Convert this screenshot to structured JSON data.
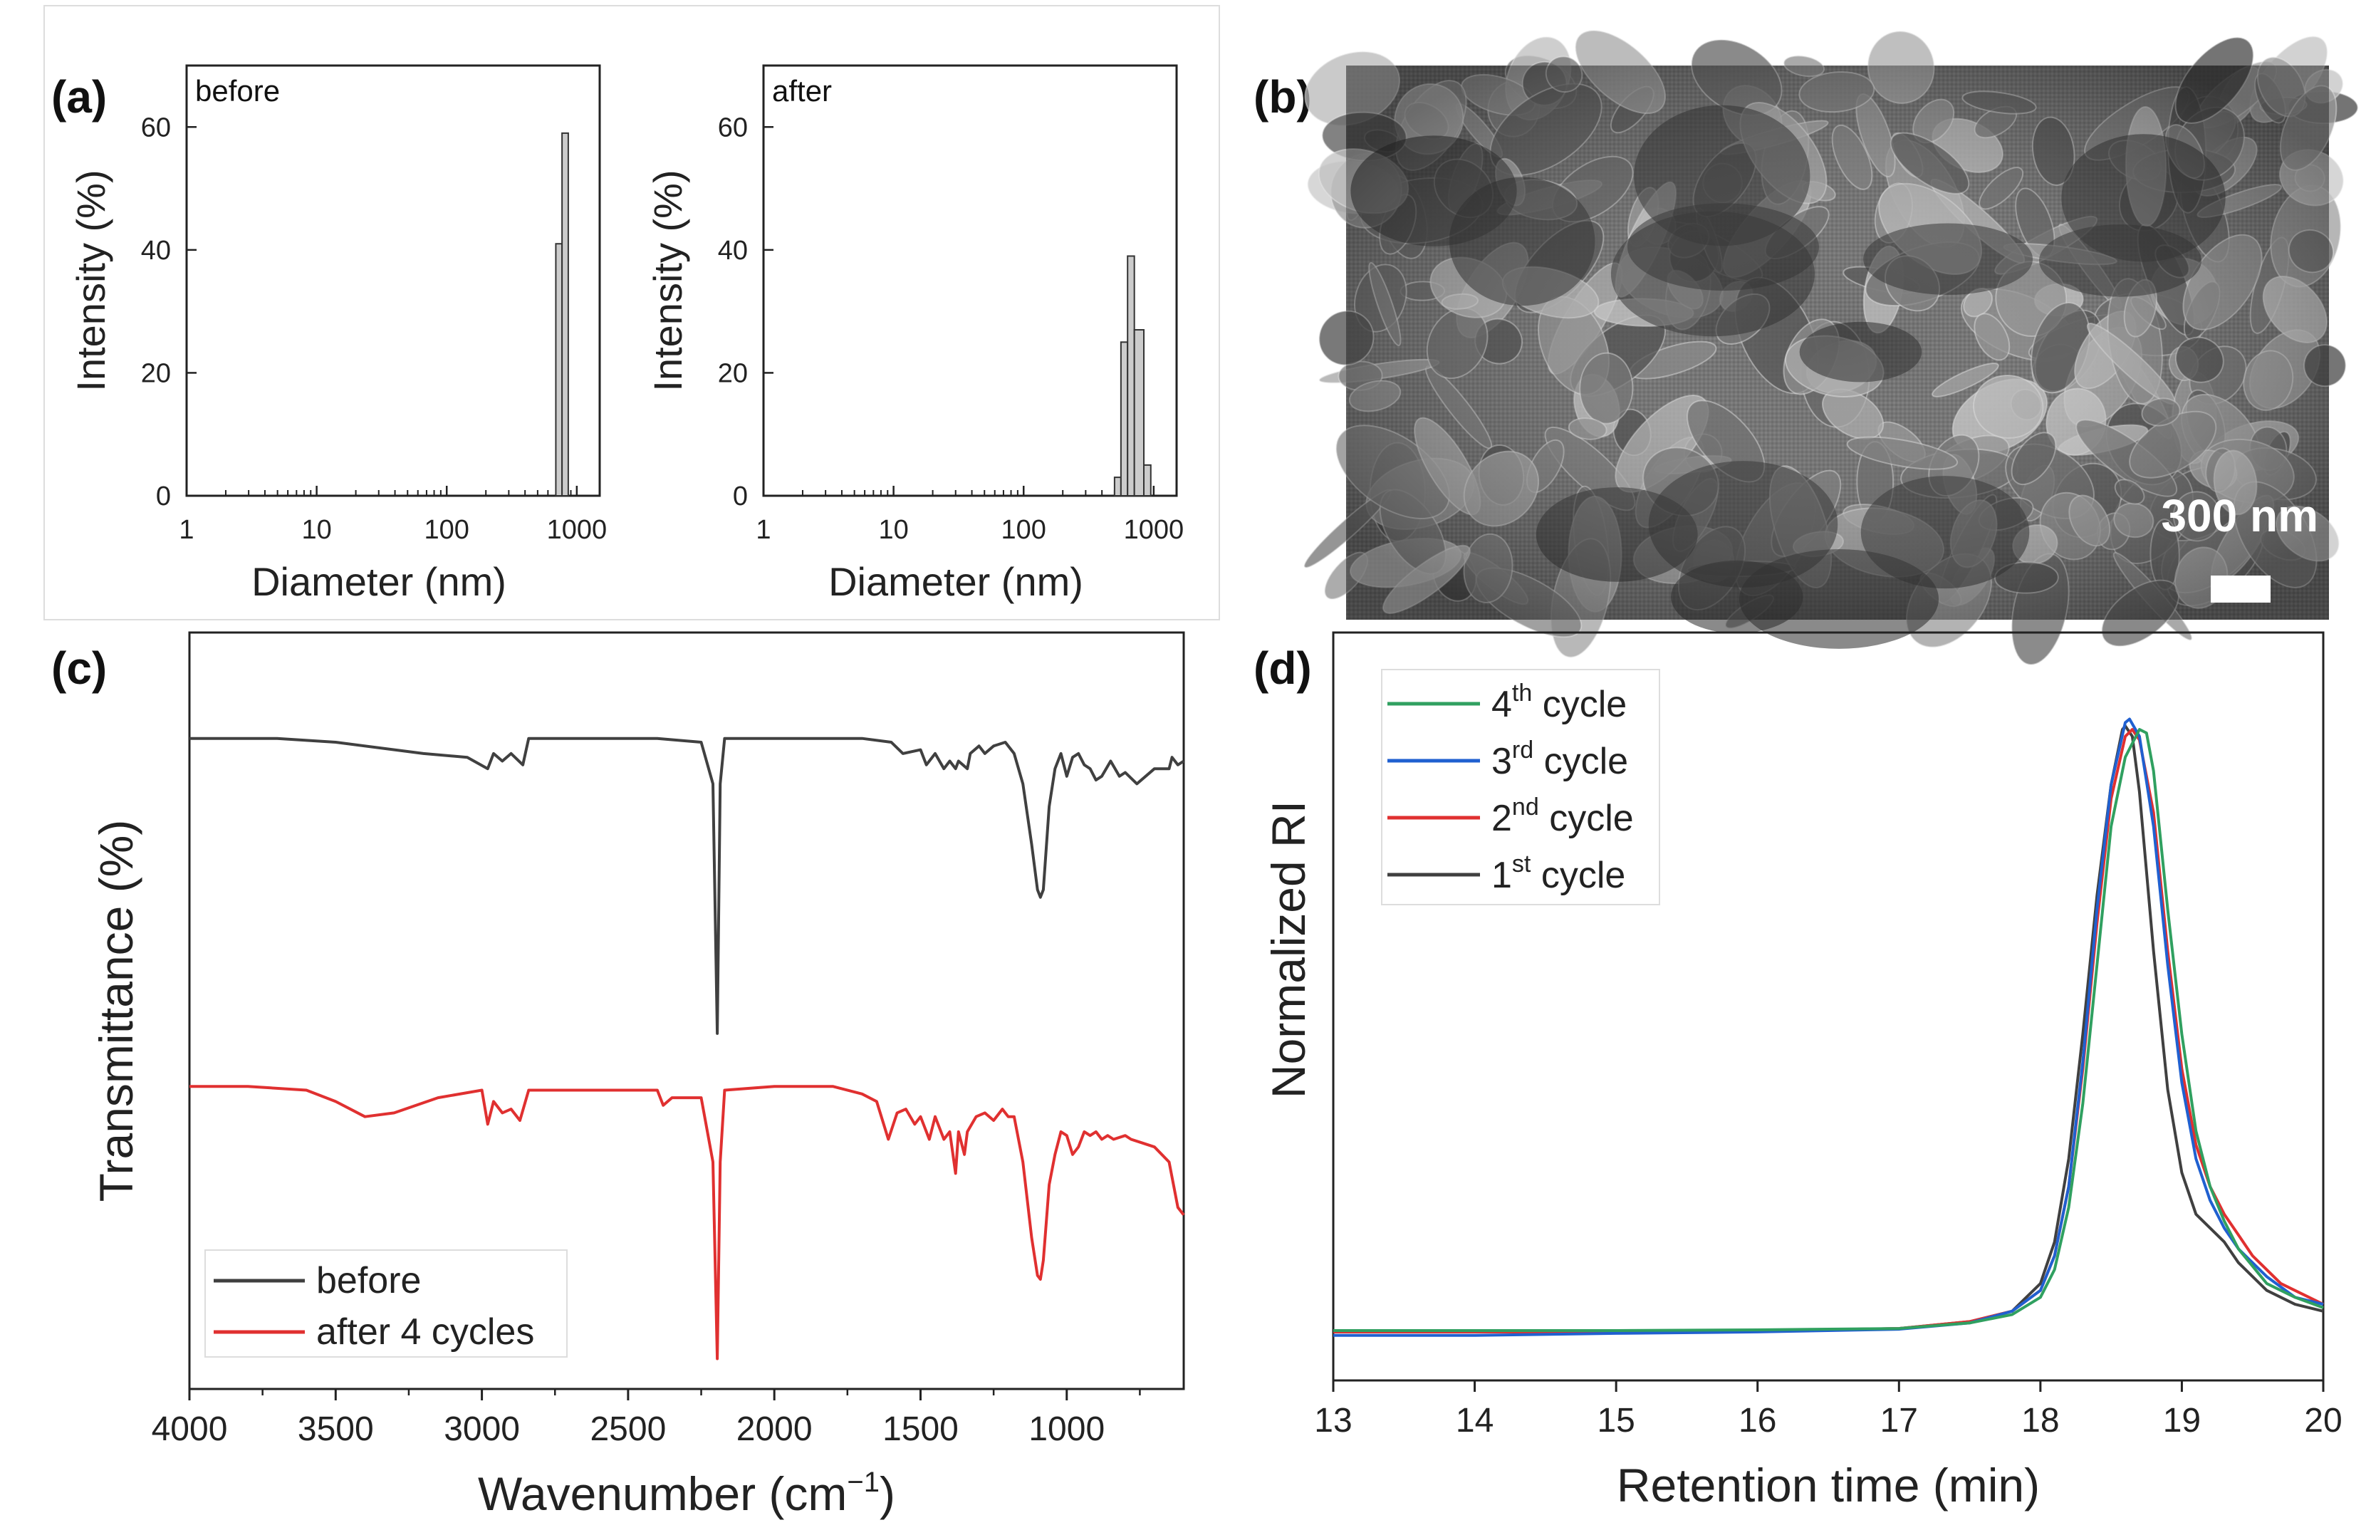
{
  "panels": {
    "a": "(a)",
    "b": "(b)",
    "c": "(c)",
    "d": "(d)"
  },
  "sem": {
    "scale_label": "300 nm"
  },
  "chart_data": [
    {
      "id": "a_before",
      "type": "bar",
      "inset_label": "before",
      "xlabel": "Diameter (nm)",
      "ylabel": "Intensity (%)",
      "xscale": "log",
      "xlim": [
        1,
        1500
      ],
      "ylim": [
        0,
        70
      ],
      "xticks": [
        1,
        10,
        100,
        1000
      ],
      "xtick_labels": [
        "1",
        "10",
        "100",
        "1000"
      ],
      "yticks": [
        0,
        20,
        40,
        60
      ],
      "ytick_labels": [
        "0",
        "20",
        "40",
        "60"
      ],
      "bins": [
        {
          "x0": 690,
          "x1": 770,
          "value": 41
        },
        {
          "x0": 770,
          "x1": 860,
          "value": 59
        }
      ]
    },
    {
      "id": "a_after",
      "type": "bar",
      "inset_label": "after",
      "xlabel": "Diameter (nm)",
      "ylabel": "Intensity (%)",
      "xscale": "log",
      "xlim": [
        1,
        1500
      ],
      "ylim": [
        0,
        70
      ],
      "xticks": [
        1,
        10,
        100,
        1000
      ],
      "xtick_labels": [
        "1",
        "10",
        "100",
        "1000"
      ],
      "yticks": [
        0,
        20,
        40,
        60
      ],
      "ytick_labels": [
        "0",
        "20",
        "40",
        "60"
      ],
      "bins": [
        {
          "x0": 500,
          "x1": 560,
          "value": 3
        },
        {
          "x0": 560,
          "x1": 630,
          "value": 25
        },
        {
          "x0": 630,
          "x1": 710,
          "value": 39
        },
        {
          "x0": 710,
          "x1": 840,
          "value": 27
        },
        {
          "x0": 840,
          "x1": 950,
          "value": 5
        }
      ]
    },
    {
      "id": "c",
      "type": "line",
      "xlabel": "Wavenumber (cm",
      "xlabel_sup": "−1",
      "xlabel_end": ")",
      "ylabel": "Transmittance (%)",
      "xlim": [
        4000,
        600
      ],
      "ylim": [
        0,
        100
      ],
      "xticks": [
        4000,
        3500,
        3000,
        2500,
        2000,
        1500,
        1000
      ],
      "xtick_labels": [
        "4000",
        "3500",
        "3000",
        "2500",
        "2000",
        "1500",
        "1000"
      ],
      "series": [
        {
          "name": "before",
          "color": "#404040",
          "points": [
            [
              4000,
              86
            ],
            [
              3700,
              86
            ],
            [
              3500,
              85.5
            ],
            [
              3200,
              84
            ],
            [
              3050,
              83.5
            ],
            [
              2980,
              82
            ],
            [
              2960,
              84
            ],
            [
              2930,
              83
            ],
            [
              2900,
              84
            ],
            [
              2860,
              82.5
            ],
            [
              2840,
              86
            ],
            [
              2700,
              86
            ],
            [
              2400,
              86
            ],
            [
              2250,
              85.5
            ],
            [
              2210,
              80
            ],
            [
              2195,
              47
            ],
            [
              2185,
              80
            ],
            [
              2170,
              86
            ],
            [
              2000,
              86
            ],
            [
              1700,
              86
            ],
            [
              1600,
              85.5
            ],
            [
              1560,
              84
            ],
            [
              1500,
              84.5
            ],
            [
              1480,
              82.5
            ],
            [
              1450,
              84
            ],
            [
              1420,
              82
            ],
            [
              1400,
              83
            ],
            [
              1380,
              82
            ],
            [
              1370,
              83
            ],
            [
              1340,
              82
            ],
            [
              1330,
              84
            ],
            [
              1300,
              85
            ],
            [
              1280,
              84
            ],
            [
              1250,
              85
            ],
            [
              1210,
              85.5
            ],
            [
              1180,
              84
            ],
            [
              1150,
              80
            ],
            [
              1120,
              72
            ],
            [
              1100,
              66
            ],
            [
              1090,
              65
            ],
            [
              1080,
              66
            ],
            [
              1060,
              77
            ],
            [
              1040,
              82
            ],
            [
              1020,
              84
            ],
            [
              1000,
              81
            ],
            [
              980,
              83.5
            ],
            [
              960,
              84
            ],
            [
              940,
              82.5
            ],
            [
              920,
              82
            ],
            [
              900,
              80.5
            ],
            [
              880,
              81
            ],
            [
              850,
              83
            ],
            [
              820,
              81
            ],
            [
              800,
              81.5
            ],
            [
              760,
              80
            ],
            [
              700,
              82
            ],
            [
              650,
              82
            ],
            [
              640,
              83.5
            ],
            [
              620,
              82.5
            ],
            [
              600,
              83
            ]
          ]
        },
        {
          "name": "after 4 cycles",
          "color": "#e03030",
          "points": [
            [
              4000,
              40
            ],
            [
              3800,
              40
            ],
            [
              3600,
              39.5
            ],
            [
              3500,
              38
            ],
            [
              3400,
              36
            ],
            [
              3300,
              36.5
            ],
            [
              3150,
              38.5
            ],
            [
              3000,
              39.5
            ],
            [
              2980,
              35
            ],
            [
              2960,
              38
            ],
            [
              2930,
              36.5
            ],
            [
              2900,
              37
            ],
            [
              2870,
              35.5
            ],
            [
              2840,
              39.5
            ],
            [
              2700,
              39.5
            ],
            [
              2400,
              39.5
            ],
            [
              2380,
              37.5
            ],
            [
              2350,
              38.5
            ],
            [
              2250,
              38.5
            ],
            [
              2210,
              30
            ],
            [
              2195,
              4
            ],
            [
              2185,
              30
            ],
            [
              2170,
              39.5
            ],
            [
              2000,
              40
            ],
            [
              1800,
              40
            ],
            [
              1700,
              39
            ],
            [
              1650,
              38
            ],
            [
              1610,
              33
            ],
            [
              1580,
              36.5
            ],
            [
              1550,
              37
            ],
            [
              1520,
              35
            ],
            [
              1500,
              36
            ],
            [
              1470,
              33
            ],
            [
              1450,
              36
            ],
            [
              1420,
              33
            ],
            [
              1400,
              34
            ],
            [
              1380,
              28.5
            ],
            [
              1370,
              34
            ],
            [
              1350,
              31
            ],
            [
              1340,
              34
            ],
            [
              1310,
              36
            ],
            [
              1280,
              36.5
            ],
            [
              1250,
              35.5
            ],
            [
              1220,
              37
            ],
            [
              1200,
              36
            ],
            [
              1180,
              36
            ],
            [
              1150,
              30
            ],
            [
              1120,
              20
            ],
            [
              1100,
              15
            ],
            [
              1090,
              14.5
            ],
            [
              1080,
              17
            ],
            [
              1060,
              27
            ],
            [
              1040,
              31
            ],
            [
              1020,
              34
            ],
            [
              1000,
              33.5
            ],
            [
              980,
              31
            ],
            [
              960,
              32
            ],
            [
              940,
              34
            ],
            [
              920,
              33.5
            ],
            [
              900,
              34
            ],
            [
              880,
              33
            ],
            [
              860,
              33.5
            ],
            [
              840,
              33
            ],
            [
              800,
              33.5
            ],
            [
              780,
              33
            ],
            [
              740,
              32.5
            ],
            [
              700,
              32
            ],
            [
              650,
              30
            ],
            [
              620,
              24
            ],
            [
              600,
              23
            ]
          ]
        }
      ]
    },
    {
      "id": "d",
      "type": "line",
      "xlabel": "Retention time (min)",
      "ylabel": "Normalized RI",
      "xlim": [
        13,
        20
      ],
      "ylim": [
        0,
        1.08
      ],
      "xticks": [
        13,
        14,
        15,
        16,
        17,
        18,
        19,
        20
      ],
      "xtick_labels": [
        "13",
        "14",
        "15",
        "16",
        "17",
        "18",
        "19",
        "20"
      ],
      "legend_position": "top-left",
      "legend_order": [
        3,
        2,
        1,
        0
      ],
      "series": [
        {
          "name": "1",
          "sup": "st",
          "suffix": " cycle",
          "color": "#404040",
          "points": [
            [
              13,
              0.07
            ],
            [
              14,
              0.07
            ],
            [
              15,
              0.07
            ],
            [
              16,
              0.072
            ],
            [
              17,
              0.075
            ],
            [
              17.5,
              0.085
            ],
            [
              17.8,
              0.1
            ],
            [
              18,
              0.14
            ],
            [
              18.1,
              0.2
            ],
            [
              18.2,
              0.32
            ],
            [
              18.3,
              0.5
            ],
            [
              18.4,
              0.7
            ],
            [
              18.5,
              0.86
            ],
            [
              18.58,
              0.94
            ],
            [
              18.6,
              0.945
            ],
            [
              18.65,
              0.93
            ],
            [
              18.7,
              0.85
            ],
            [
              18.8,
              0.62
            ],
            [
              18.9,
              0.42
            ],
            [
              19,
              0.3
            ],
            [
              19.1,
              0.24
            ],
            [
              19.2,
              0.22
            ],
            [
              19.3,
              0.2
            ],
            [
              19.4,
              0.17
            ],
            [
              19.6,
              0.13
            ],
            [
              19.8,
              0.11
            ],
            [
              20,
              0.1
            ]
          ]
        },
        {
          "name": "2",
          "sup": "nd",
          "suffix": " cycle",
          "color": "#e03030",
          "points": [
            [
              13,
              0.07
            ],
            [
              14,
              0.07
            ],
            [
              15,
              0.07
            ],
            [
              16,
              0.072
            ],
            [
              17,
              0.075
            ],
            [
              17.5,
              0.085
            ],
            [
              17.8,
              0.1
            ],
            [
              18,
              0.13
            ],
            [
              18.1,
              0.18
            ],
            [
              18.2,
              0.28
            ],
            [
              18.3,
              0.45
            ],
            [
              18.4,
              0.66
            ],
            [
              18.5,
              0.84
            ],
            [
              18.6,
              0.93
            ],
            [
              18.65,
              0.94
            ],
            [
              18.7,
              0.925
            ],
            [
              18.8,
              0.82
            ],
            [
              18.9,
              0.62
            ],
            [
              19,
              0.45
            ],
            [
              19.1,
              0.34
            ],
            [
              19.2,
              0.28
            ],
            [
              19.3,
              0.24
            ],
            [
              19.4,
              0.21
            ],
            [
              19.5,
              0.18
            ],
            [
              19.7,
              0.14
            ],
            [
              20,
              0.11
            ]
          ]
        },
        {
          "name": "3",
          "sup": "rd",
          "suffix": " cycle",
          "color": "#2060d0",
          "points": [
            [
              13,
              0.065
            ],
            [
              14,
              0.065
            ],
            [
              15,
              0.068
            ],
            [
              16,
              0.07
            ],
            [
              17,
              0.074
            ],
            [
              17.5,
              0.083
            ],
            [
              17.8,
              0.1
            ],
            [
              18,
              0.13
            ],
            [
              18.1,
              0.18
            ],
            [
              18.2,
              0.28
            ],
            [
              18.3,
              0.46
            ],
            [
              18.4,
              0.68
            ],
            [
              18.5,
              0.86
            ],
            [
              18.6,
              0.95
            ],
            [
              18.63,
              0.955
            ],
            [
              18.7,
              0.93
            ],
            [
              18.8,
              0.8
            ],
            [
              18.9,
              0.6
            ],
            [
              19,
              0.43
            ],
            [
              19.1,
              0.32
            ],
            [
              19.2,
              0.26
            ],
            [
              19.3,
              0.22
            ],
            [
              19.4,
              0.19
            ],
            [
              19.6,
              0.15
            ],
            [
              19.8,
              0.12
            ],
            [
              20,
              0.11
            ]
          ]
        },
        {
          "name": "4",
          "sup": "th",
          "suffix": " cycle",
          "color": "#30a060",
          "points": [
            [
              13,
              0.072
            ],
            [
              14,
              0.072
            ],
            [
              15,
              0.072
            ],
            [
              16,
              0.073
            ],
            [
              17,
              0.075
            ],
            [
              17.5,
              0.083
            ],
            [
              17.8,
              0.095
            ],
            [
              18,
              0.12
            ],
            [
              18.1,
              0.16
            ],
            [
              18.2,
              0.25
            ],
            [
              18.3,
              0.4
            ],
            [
              18.4,
              0.6
            ],
            [
              18.5,
              0.8
            ],
            [
              18.6,
              0.9
            ],
            [
              18.7,
              0.94
            ],
            [
              18.75,
              0.935
            ],
            [
              18.8,
              0.88
            ],
            [
              18.9,
              0.68
            ],
            [
              19,
              0.5
            ],
            [
              19.1,
              0.36
            ],
            [
              19.2,
              0.28
            ],
            [
              19.3,
              0.23
            ],
            [
              19.4,
              0.19
            ],
            [
              19.6,
              0.14
            ],
            [
              19.8,
              0.12
            ],
            [
              20,
              0.105
            ]
          ]
        }
      ]
    }
  ]
}
